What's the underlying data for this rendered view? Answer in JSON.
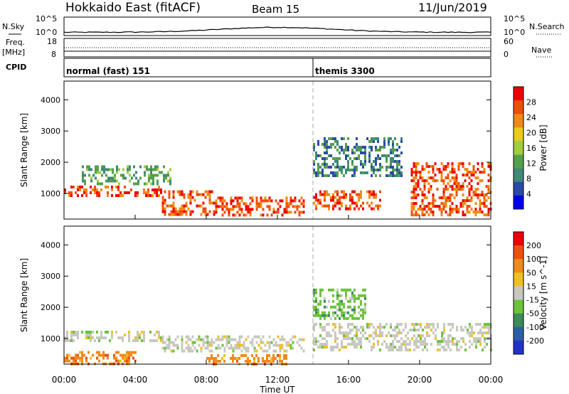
{
  "header": {
    "station": "Hokkaido East (fitACF)",
    "beam": "Beam 15",
    "date": "11/Jun/2019"
  },
  "top_panels": {
    "nsky_label": "N.Sky",
    "nsearch_label": "N.Search",
    "freq_label": "Freq.",
    "freq_unit": "[MHz]",
    "nave_label": "Nave",
    "cpid_label": "CPID",
    "noise_ticks": [
      "10^5",
      "10^0"
    ],
    "noise_ticks_right": [
      "10^5",
      "10^0"
    ],
    "freq_ticks": [
      "18",
      "8"
    ],
    "nave_ticks": [
      "60",
      "0"
    ]
  },
  "cpid_segments": [
    {
      "label": "normal (fast) 151",
      "start_hour": 0
    },
    {
      "label": "themis 3300",
      "start_hour": 14
    }
  ],
  "colors": {
    "power": [
      "#0000ee",
      "#2a4aa8",
      "#3f8a78",
      "#55a04a",
      "#9fcd3c",
      "#e8cc18",
      "#f08a12",
      "#f04d0a",
      "#ee0000"
    ],
    "velocity": [
      "#2233cc",
      "#2b5fa8",
      "#3d8a5a",
      "#6cc33c",
      "#c8c8c0",
      "#f0c020",
      "#f08a18",
      "#ef5010",
      "#ee0000"
    ],
    "ground_scatter": "#c8c8c0"
  },
  "chart_data": [
    {
      "type": "heatmap",
      "title": "Power",
      "ylabel": "Slant Range [km]",
      "xlabel": "Time UT",
      "colorbar_label": "Power [dB]",
      "colorbar_ticks": [
        "28",
        "24",
        "20",
        "16",
        "12",
        "8",
        "4"
      ],
      "ylim": [
        180,
        4600
      ],
      "y_ticks": [
        "4000",
        "3000",
        "2000",
        "1000"
      ],
      "x_ticks": [
        "00:00",
        "04:00",
        "08:00",
        "12:00",
        "16:00",
        "20:00",
        "00:00"
      ],
      "xlim_hours": [
        0,
        24
      ],
      "echo_regions": [
        {
          "t0": 0.0,
          "t1": 5.5,
          "r0": 950,
          "r1": 1250,
          "level": 8
        },
        {
          "t0": 5.5,
          "t1": 8.5,
          "r0": 300,
          "r1": 1100,
          "level": 8
        },
        {
          "t0": 8.5,
          "t1": 13.5,
          "r0": 300,
          "r1": 900,
          "level": 8
        },
        {
          "t0": 14.0,
          "t1": 17.8,
          "r0": 500,
          "r1": 1100,
          "level": 8
        },
        {
          "t0": 19.5,
          "t1": 24.0,
          "r0": 300,
          "r1": 2000,
          "level": 8
        },
        {
          "t0": 1.0,
          "t1": 6.0,
          "r0": 1300,
          "r1": 1900,
          "level": 4
        },
        {
          "t0": 14.0,
          "t1": 19.0,
          "r0": 1600,
          "r1": 2800,
          "level": 3
        }
      ]
    },
    {
      "type": "heatmap",
      "title": "Velocity",
      "ylabel": "Slant Range [km]",
      "xlabel": "Time UT",
      "colorbar_label": "Velocity [m s^-1]",
      "colorbar_ticks": [
        "200",
        "100",
        "50",
        "15",
        "-15",
        "-50",
        "-100",
        "-200"
      ],
      "ylim": [
        180,
        4600
      ],
      "y_ticks": [
        "4000",
        "3000",
        "2000",
        "1000"
      ],
      "x_ticks": [
        "00:00",
        "04:00",
        "08:00",
        "12:00",
        "16:00",
        "20:00",
        "00:00"
      ],
      "xlim_hours": [
        0,
        24
      ],
      "echo_regions": [
        {
          "t0": 0.0,
          "t1": 5.5,
          "r0": 900,
          "r1": 1250,
          "level": 4
        },
        {
          "t0": 5.5,
          "t1": 13.5,
          "r0": 600,
          "r1": 1100,
          "level": 4
        },
        {
          "t0": 14.0,
          "t1": 24.0,
          "r0": 600,
          "r1": 1500,
          "level": 4
        },
        {
          "t0": 0.0,
          "t1": 4.0,
          "r0": 200,
          "r1": 600,
          "level": 6
        },
        {
          "t0": 8.0,
          "t1": 12.5,
          "r0": 200,
          "r1": 500,
          "level": 6
        },
        {
          "t0": 14.0,
          "t1": 17.0,
          "r0": 1600,
          "r1": 2600,
          "level": 3
        }
      ]
    }
  ]
}
